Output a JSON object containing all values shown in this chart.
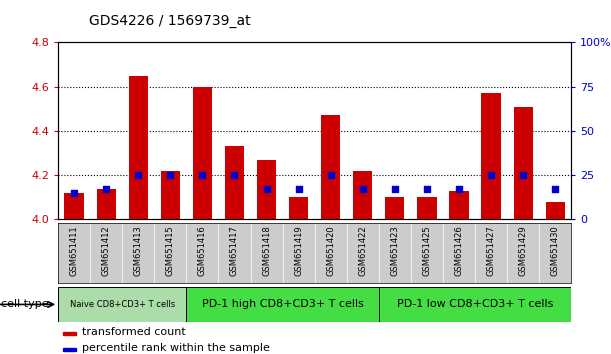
{
  "title": "GDS4226 / 1569739_at",
  "samples": [
    "GSM651411",
    "GSM651412",
    "GSM651413",
    "GSM651415",
    "GSM651416",
    "GSM651417",
    "GSM651418",
    "GSM651419",
    "GSM651420",
    "GSM651422",
    "GSM651423",
    "GSM651425",
    "GSM651426",
    "GSM651427",
    "GSM651429",
    "GSM651430"
  ],
  "transformed_count": [
    4.12,
    4.14,
    4.65,
    4.22,
    4.6,
    4.33,
    4.27,
    4.1,
    4.47,
    4.22,
    4.1,
    4.1,
    4.13,
    4.57,
    4.51,
    4.08
  ],
  "percentile_rank": [
    15,
    17,
    25,
    25,
    25,
    25,
    17,
    17,
    25,
    17,
    17,
    17,
    17,
    25,
    25,
    17
  ],
  "ylim_left": [
    4.0,
    4.8
  ],
  "ylim_right": [
    0,
    100
  ],
  "yticks_left": [
    4.0,
    4.2,
    4.4,
    4.6,
    4.8
  ],
  "yticks_right": [
    0,
    25,
    50,
    75,
    100
  ],
  "ytick_labels_right": [
    "0",
    "25",
    "50",
    "75",
    "100%"
  ],
  "bar_color": "#cc0000",
  "percentile_color": "#0000cc",
  "group_positions": [
    {
      "label": "Naive CD8+CD3+ T cells",
      "start": 0,
      "end": 3,
      "color": "#aaddaa"
    },
    {
      "label": "PD-1 high CD8+CD3+ T cells",
      "start": 4,
      "end": 9,
      "color": "#44dd44"
    },
    {
      "label": "PD-1 low CD8+CD3+ T cells",
      "start": 10,
      "end": 15,
      "color": "#44dd44"
    }
  ],
  "cell_type_label": "cell type",
  "legend1": "transformed count",
  "legend2": "percentile rank within the sample",
  "axis_label_color_left": "#cc0000",
  "axis_label_color_right": "#0000cc",
  "sample_bg_color": "#cccccc",
  "grid_yticks": [
    4.2,
    4.4,
    4.6
  ]
}
